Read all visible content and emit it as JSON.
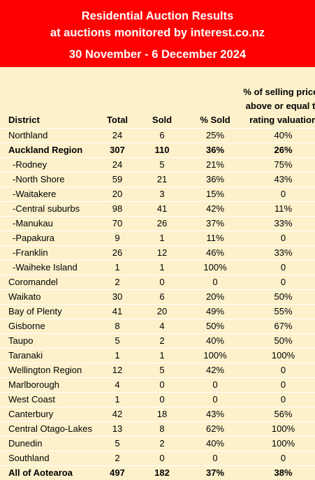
{
  "title": {
    "line1": "Residential Auction Results",
    "line2": "at auctions monitored by interest.co.nz",
    "line3": "30 November - 6 December 2024"
  },
  "headers": {
    "district": "District",
    "total": "Total",
    "sold": "Sold",
    "pct_sold": "% Sold",
    "valuation": "% of selling prices above or equal to rating valuation"
  },
  "rows": [
    {
      "district": "Northland",
      "total": "24",
      "sold": "6",
      "pct_sold": "25%",
      "valuation": "40%",
      "style": ""
    },
    {
      "district": "Auckland Region",
      "total": "307",
      "sold": "110",
      "pct_sold": "36%",
      "valuation": "26%",
      "style": "bold"
    },
    {
      "district": "-Rodney",
      "total": "24",
      "sold": "5",
      "pct_sold": "21%",
      "valuation": "75%",
      "style": "sub"
    },
    {
      "district": "-North Shore",
      "total": "59",
      "sold": "21",
      "pct_sold": "36%",
      "valuation": "43%",
      "style": "sub"
    },
    {
      "district": "-Waitakere",
      "total": "20",
      "sold": "3",
      "pct_sold": "15%",
      "valuation": "0",
      "style": "sub"
    },
    {
      "district": "-Central suburbs",
      "total": "98",
      "sold": "41",
      "pct_sold": "42%",
      "valuation": "11%",
      "style": "sub"
    },
    {
      "district": "-Manukau",
      "total": "70",
      "sold": "26",
      "pct_sold": "37%",
      "valuation": "33%",
      "style": "sub"
    },
    {
      "district": "-Papakura",
      "total": "9",
      "sold": "1",
      "pct_sold": "11%",
      "valuation": "0",
      "style": "sub"
    },
    {
      "district": "-Franklin",
      "total": "26",
      "sold": "12",
      "pct_sold": "46%",
      "valuation": "33%",
      "style": "sub"
    },
    {
      "district": "-Waiheke Island",
      "total": "1",
      "sold": "1",
      "pct_sold": "100%",
      "valuation": "0",
      "style": "sub"
    },
    {
      "district": "Coromandel",
      "total": "2",
      "sold": "0",
      "pct_sold": "0",
      "valuation": "0",
      "style": ""
    },
    {
      "district": "Waikato",
      "total": "30",
      "sold": "6",
      "pct_sold": "20%",
      "valuation": "50%",
      "style": ""
    },
    {
      "district": "Bay of Plenty",
      "total": "41",
      "sold": "20",
      "pct_sold": "49%",
      "valuation": "55%",
      "style": ""
    },
    {
      "district": "Gisborne",
      "total": "8",
      "sold": "4",
      "pct_sold": "50%",
      "valuation": "67%",
      "style": ""
    },
    {
      "district": "Taupo",
      "total": "5",
      "sold": "2",
      "pct_sold": "40%",
      "valuation": "50%",
      "style": ""
    },
    {
      "district": "Taranaki",
      "total": "1",
      "sold": "1",
      "pct_sold": "100%",
      "valuation": "100%",
      "style": ""
    },
    {
      "district": "Wellington Region",
      "total": "12",
      "sold": "5",
      "pct_sold": "42%",
      "valuation": "0",
      "style": ""
    },
    {
      "district": "Marlborough",
      "total": "4",
      "sold": "0",
      "pct_sold": "0",
      "valuation": "0",
      "style": ""
    },
    {
      "district": "West Coast",
      "total": "1",
      "sold": "0",
      "pct_sold": "0",
      "valuation": "0",
      "style": ""
    },
    {
      "district": "Canterbury",
      "total": "42",
      "sold": "18",
      "pct_sold": "43%",
      "valuation": "56%",
      "style": ""
    },
    {
      "district": "Central Otago-Lakes",
      "total": "13",
      "sold": "8",
      "pct_sold": "62%",
      "valuation": "100%",
      "style": ""
    },
    {
      "district": "Dunedin",
      "total": "5",
      "sold": "2",
      "pct_sold": "40%",
      "valuation": "100%",
      "style": ""
    },
    {
      "district": "Southland",
      "total": "2",
      "sold": "0",
      "pct_sold": "0",
      "valuation": "0",
      "style": ""
    },
    {
      "district": "All of Aotearoa",
      "total": "497",
      "sold": "182",
      "pct_sold": "37%",
      "valuation": "38%",
      "style": "bold"
    }
  ],
  "colors": {
    "banner": "#ff0000",
    "background": "#fdf1cb",
    "row_divider": "#ffffff"
  }
}
